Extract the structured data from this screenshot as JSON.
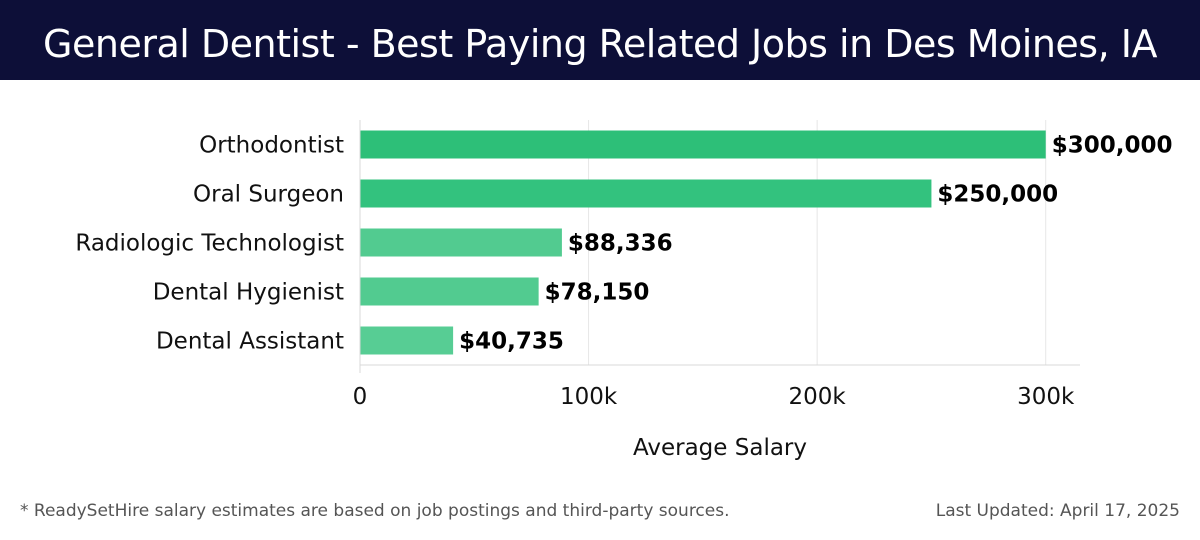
{
  "header": {
    "title": "General Dentist - Best Paying Related Jobs in Des Moines, IA",
    "background": "#0d0f38"
  },
  "chart_data": {
    "type": "bar",
    "orientation": "horizontal",
    "title": "General Dentist - Best Paying Related Jobs in Des Moines, IA",
    "xlabel": "Average Salary",
    "ylabel": "",
    "categories": [
      "Orthodontist",
      "Oral Surgeon",
      "Radiologic Technologist",
      "Dental Hygienist",
      "Dental Assistant"
    ],
    "values": [
      300000,
      250000,
      88336,
      78150,
      40735
    ],
    "value_labels": [
      "$300,000",
      "$250,000",
      "$88,336",
      "$78,150",
      "$40,735"
    ],
    "xlim": [
      0,
      315000
    ],
    "xticks": [
      0,
      100000,
      200000,
      300000
    ],
    "xtick_labels": [
      "0",
      "100k",
      "200k",
      "300k"
    ],
    "grid": true,
    "bar_colors": [
      "#2dbf78",
      "#33c27e",
      "#52cb90",
      "#52cb90",
      "#57cd94"
    ]
  },
  "footer": {
    "note": "* ReadySetHire salary estimates are based on job postings and third-party sources.",
    "updated": "Last Updated: April 17, 2025"
  }
}
